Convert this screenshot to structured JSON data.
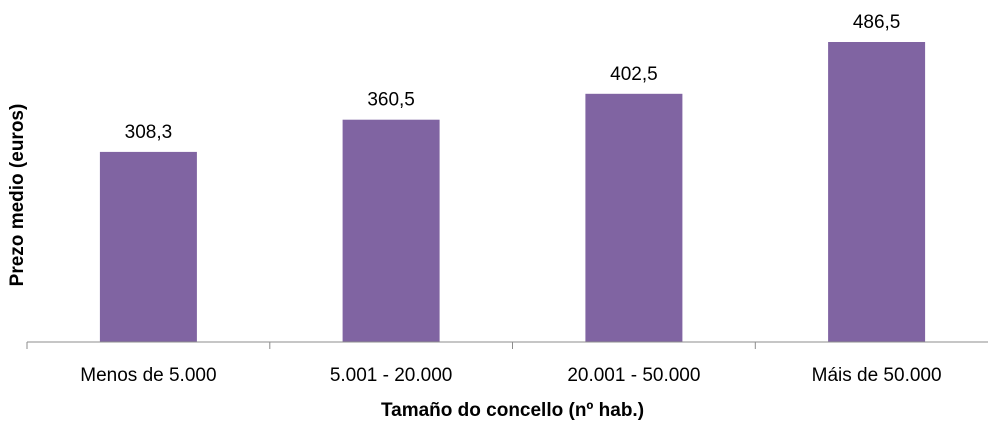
{
  "chart_data": {
    "type": "bar",
    "title": "",
    "xlabel": "Tamaño do concello (nº hab.)",
    "ylabel": "Prezo medio (euros)",
    "categories": [
      "Menos de 5.000",
      "5.001 - 20.000",
      "20.001 - 50.000",
      "Máis de 50.000"
    ],
    "values": [
      308.3,
      360.5,
      402.5,
      486.5
    ],
    "value_labels": [
      "308,3",
      "360,5",
      "402,5",
      "486,5"
    ],
    "ylim": [
      0,
      486.5
    ],
    "grid": false,
    "legend": "none",
    "bar_color": "#8064a2"
  }
}
